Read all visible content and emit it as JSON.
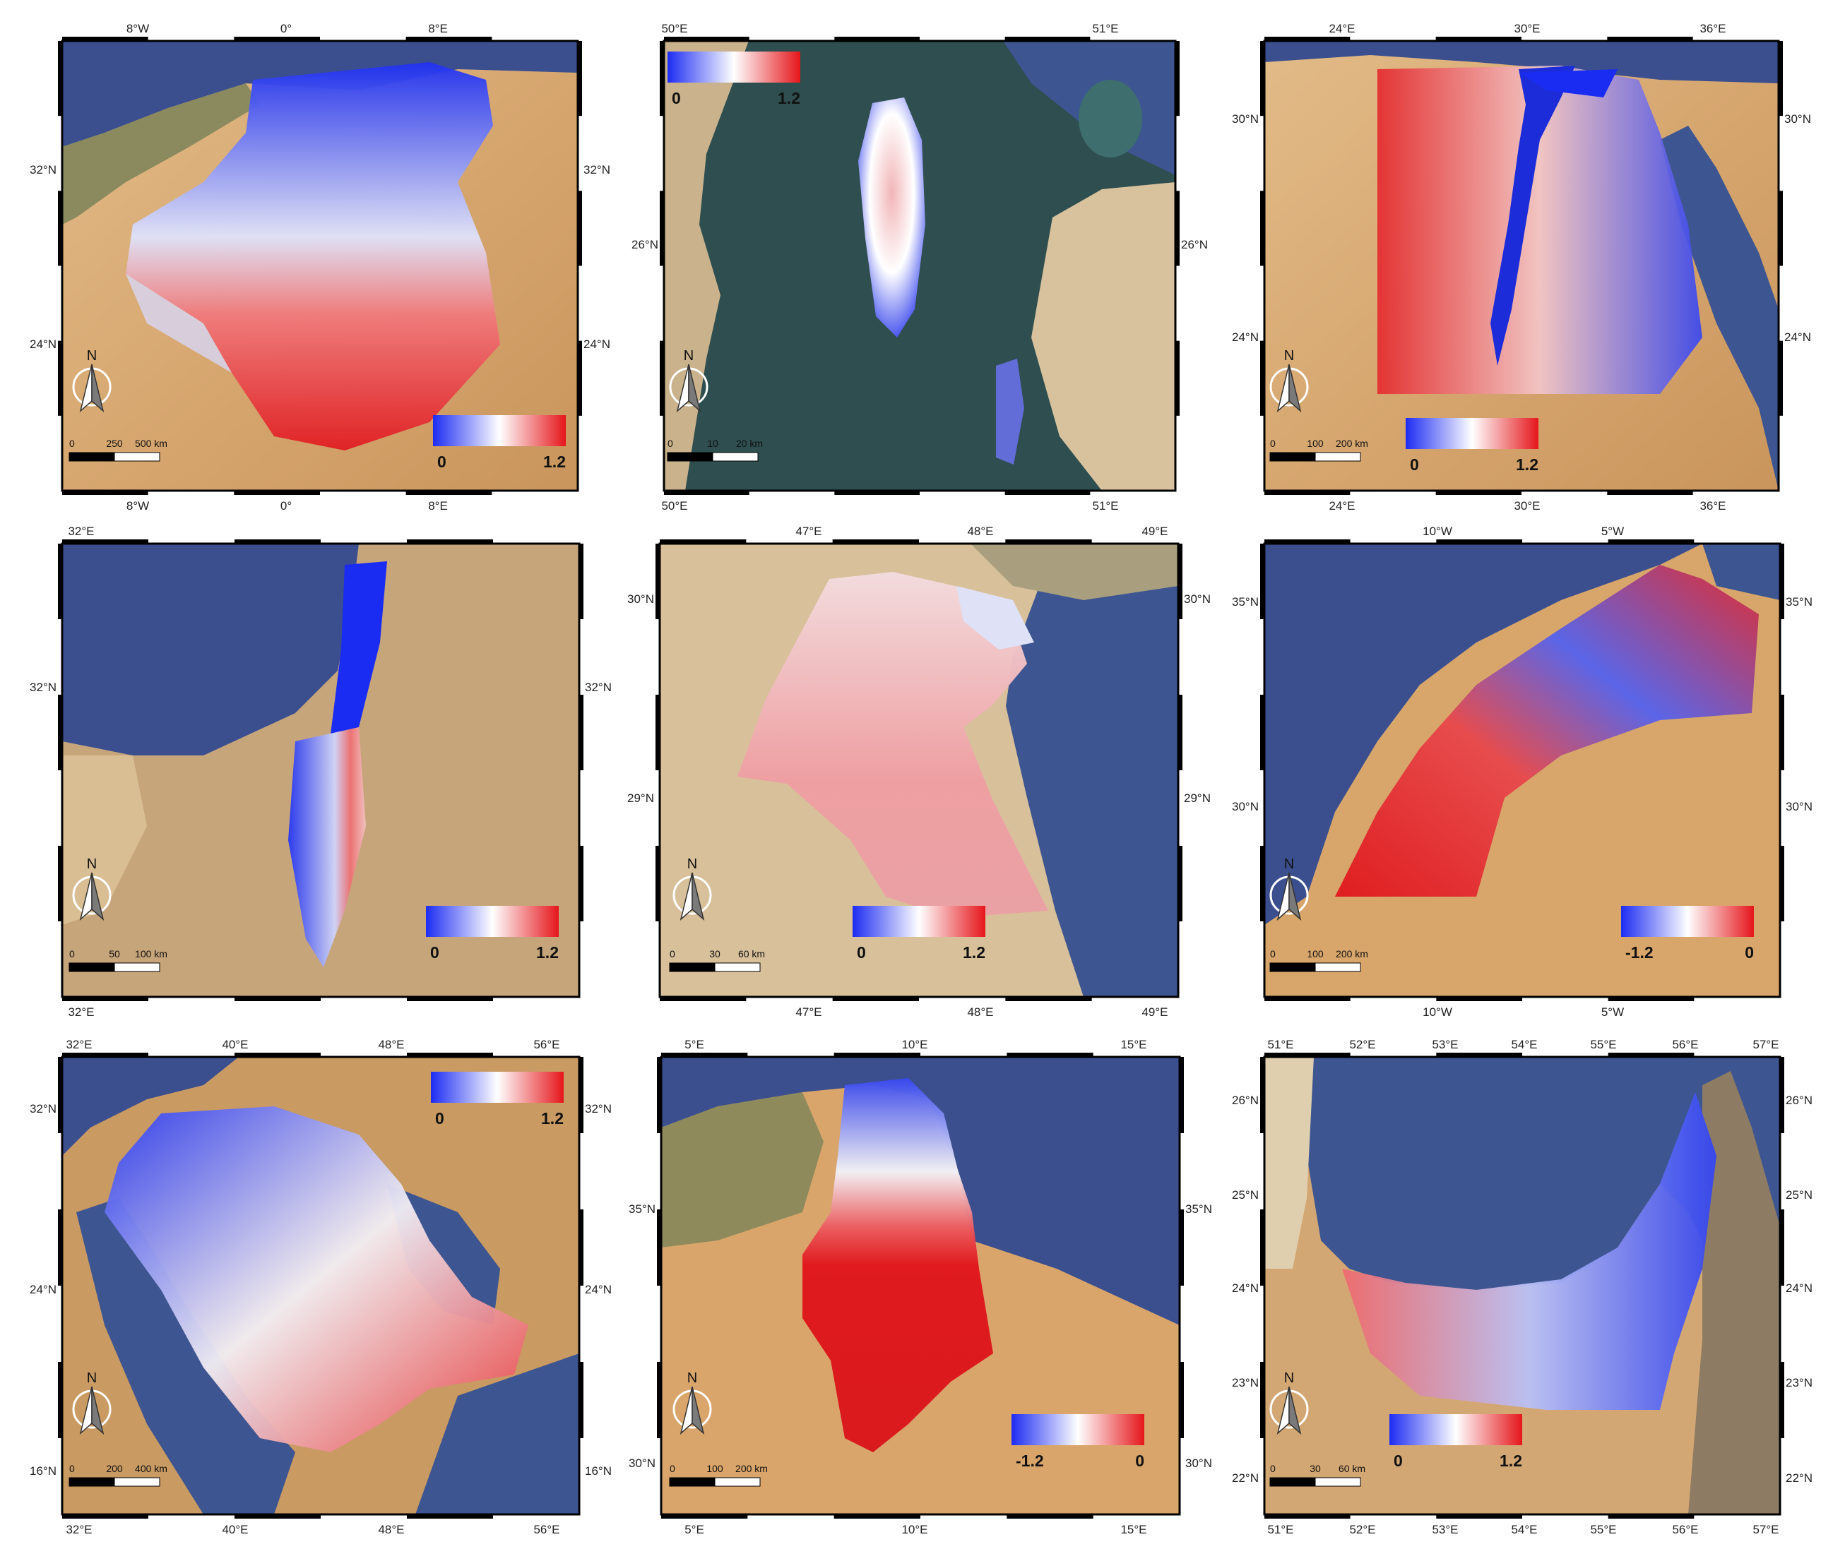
{
  "figure": {
    "panels": [
      {
        "id": "algeria",
        "x_ticks_top": [
          "8°W",
          "0°",
          "8°E"
        ],
        "x_ticks_bottom": [
          "8°W",
          "0°",
          "8°E"
        ],
        "y_ticks_left": [
          "32°N",
          "24°N"
        ],
        "y_ticks_right": [
          "32°N",
          "24°N"
        ],
        "colorbar": {
          "min": "0",
          "max": "1.2",
          "position": "bottom-right",
          "colors": [
            "#1d2cf2",
            "#ffffff",
            "#e5161b"
          ]
        },
        "scalebar": {
          "labels": [
            "0",
            "250",
            "500 km"
          ]
        },
        "north": "N"
      },
      {
        "id": "bahrain",
        "x_ticks_top": [
          "50°E",
          "51°E"
        ],
        "x_ticks_bottom": [
          "50°E",
          "51°E"
        ],
        "y_ticks_left": [
          "26°N"
        ],
        "y_ticks_right": [
          "26°N"
        ],
        "colorbar": {
          "min": "0",
          "max": "1.2",
          "position": "top-left",
          "colors": [
            "#1d2cf2",
            "#ffffff",
            "#e5161b"
          ]
        },
        "scalebar": {
          "labels": [
            "0",
            "10",
            "20 km"
          ]
        },
        "north": "N"
      },
      {
        "id": "egypt",
        "x_ticks_top": [
          "24°E",
          "30°E",
          "36°E"
        ],
        "x_ticks_bottom": [
          "24°E",
          "30°E",
          "36°E"
        ],
        "y_ticks_left": [
          "30°N",
          "24°N"
        ],
        "y_ticks_right": [
          "30°N",
          "24°N"
        ],
        "colorbar": {
          "min": "0",
          "max": "1.2",
          "position": "bottom-center",
          "colors": [
            "#1d2cf2",
            "#ffffff",
            "#e5161b"
          ]
        },
        "scalebar": {
          "labels": [
            "0",
            "100",
            "200 km"
          ]
        },
        "north": "N"
      },
      {
        "id": "israel",
        "x_ticks_top": [
          "32°E"
        ],
        "x_ticks_bottom": [
          "32°E"
        ],
        "y_ticks_left": [
          "32°N"
        ],
        "y_ticks_right": [
          "32°N"
        ],
        "colorbar": {
          "min": "0",
          "max": "1.2",
          "position": "bottom-right",
          "colors": [
            "#1d2cf2",
            "#ffffff",
            "#e5161b"
          ]
        },
        "scalebar": {
          "labels": [
            "0",
            "50",
            "100 km"
          ]
        },
        "north": "N"
      },
      {
        "id": "kuwait",
        "x_ticks_top": [
          "47°E",
          "48°E",
          "49°E"
        ],
        "x_ticks_bottom": [
          "47°E",
          "48°E",
          "49°E"
        ],
        "y_ticks_left": [
          "30°N",
          "29°N"
        ],
        "y_ticks_right": [
          "30°N",
          "29°N"
        ],
        "colorbar": {
          "min": "0",
          "max": "1.2",
          "position": "bottom-center",
          "colors": [
            "#1d2cf2",
            "#ffffff",
            "#e5161b"
          ]
        },
        "scalebar": {
          "labels": [
            "0",
            "30",
            "60 km"
          ]
        },
        "north": "N"
      },
      {
        "id": "morocco",
        "x_ticks_top": [
          "10°W",
          "5°W"
        ],
        "x_ticks_bottom": [
          "10°W",
          "5°W"
        ],
        "y_ticks_left": [
          "35°N",
          "30°N"
        ],
        "y_ticks_right": [
          "35°N",
          "30°N"
        ],
        "colorbar": {
          "min": "-1.2",
          "max": "0",
          "position": "bottom-right",
          "colors": [
            "#1d2cf2",
            "#ffffff",
            "#e5161b"
          ]
        },
        "scalebar": {
          "labels": [
            "0",
            "100",
            "200 km"
          ]
        },
        "north": "N"
      },
      {
        "id": "saudi",
        "x_ticks_top": [
          "32°E",
          "40°E",
          "48°E",
          "56°E"
        ],
        "x_ticks_bottom": [
          "32°E",
          "40°E",
          "48°E",
          "56°E"
        ],
        "y_ticks_left": [
          "32°N",
          "24°N",
          "16°N"
        ],
        "y_ticks_right": [
          "32°N",
          "24°N",
          "16°N"
        ],
        "colorbar": {
          "min": "0",
          "max": "1.2",
          "position": "top-right",
          "colors": [
            "#1d2cf2",
            "#ffffff",
            "#e5161b"
          ]
        },
        "scalebar": {
          "labels": [
            "0",
            "200",
            "400 km"
          ]
        },
        "north": "N"
      },
      {
        "id": "tunisia",
        "x_ticks_top": [
          "5°E",
          "10°E",
          "15°E"
        ],
        "x_ticks_bottom": [
          "5°E",
          "10°E",
          "15°E"
        ],
        "y_ticks_left": [
          "35°N",
          "30°N"
        ],
        "y_ticks_right": [
          "35°N",
          "30°N"
        ],
        "colorbar": {
          "min": "-1.2",
          "max": "0",
          "position": "bottom-right",
          "colors": [
            "#1d2cf2",
            "#ffffff",
            "#e5161b"
          ]
        },
        "scalebar": {
          "labels": [
            "0",
            "100",
            "200 km"
          ]
        },
        "north": "N"
      },
      {
        "id": "uae",
        "x_ticks_top": [
          "51°E",
          "52°E",
          "53°E",
          "54°E",
          "55°E",
          "56°E",
          "57°E"
        ],
        "x_ticks_bottom": [
          "51°E",
          "52°E",
          "53°E",
          "54°E",
          "55°E",
          "56°E",
          "57°E"
        ],
        "y_ticks_left": [
          "26°N",
          "25°N",
          "24°N",
          "23°N",
          "22°N"
        ],
        "y_ticks_right": [
          "26°N",
          "25°N",
          "24°N",
          "23°N",
          "22°N"
        ],
        "colorbar": {
          "min": "0",
          "max": "1.2",
          "position": "bottom-center",
          "colors": [
            "#1d2cf2",
            "#ffffff",
            "#e5161b"
          ]
        },
        "scalebar": {
          "labels": [
            "0",
            "30",
            "60 km"
          ]
        },
        "north": "N"
      }
    ]
  }
}
